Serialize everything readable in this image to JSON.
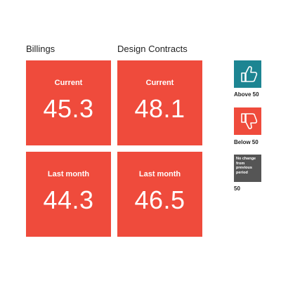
{
  "chart_data": {
    "type": "table",
    "columns": [
      "Billings",
      "Design Contracts"
    ],
    "rows": [
      {
        "label": "Current",
        "values": [
          45.3,
          48.1
        ]
      },
      {
        "label": "Last month",
        "values": [
          44.3,
          46.5
        ]
      }
    ],
    "display": {
      "billings_current": "45.3",
      "design_current": "48.1",
      "billings_last": "44.3",
      "design_last": "46.5"
    },
    "legend": [
      {
        "label": "Above 50",
        "color": "#1d8592",
        "icon": "thumbs-up-icon"
      },
      {
        "label": "Below 50",
        "color": "#ef4b3c",
        "icon": "thumbs-down-icon"
      },
      {
        "label": "50",
        "color": "#555555",
        "box_text": "No change from previous period"
      }
    ],
    "tile_color": "#ef4b3c"
  }
}
